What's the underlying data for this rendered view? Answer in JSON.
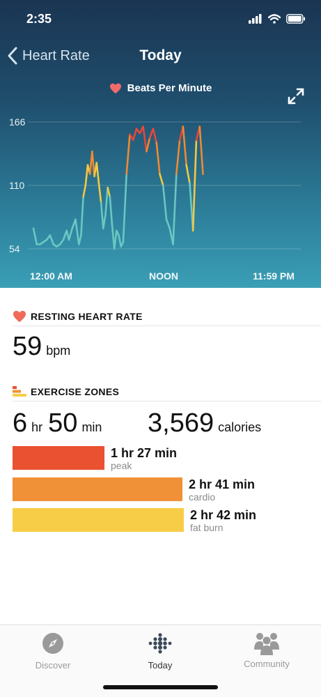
{
  "status": {
    "time": "2:35"
  },
  "nav": {
    "back_label": "Heart Rate",
    "title": "Today"
  },
  "chart_header": {
    "legend": "Beats Per Minute"
  },
  "chart_data": {
    "type": "line",
    "ylabel": "Beats Per Minute",
    "yticks": [
      54,
      110,
      166
    ],
    "ylim": [
      54,
      166
    ],
    "xticks": [
      "12:00 AM",
      "NOON",
      "11:59 PM"
    ],
    "xlim_hours": [
      0,
      24
    ],
    "colors": {
      "low": "#6ac7c2",
      "mid": "#f5c842",
      "high": "#ee8a32",
      "peak": "#e8473a"
    },
    "series": [
      {
        "x": [
          0.0,
          0.3,
          0.6,
          0.9,
          1.2,
          1.5,
          1.8,
          2.1,
          2.4,
          2.7,
          3.0,
          3.2,
          3.5,
          3.8,
          4.1,
          4.3,
          4.5,
          4.7,
          4.9,
          5.1,
          5.3,
          5.5,
          5.7,
          5.9,
          6.1,
          6.3,
          6.5,
          6.7,
          6.9,
          7.1,
          7.3,
          7.5,
          7.7,
          7.9,
          8.1,
          8.4,
          8.7,
          9.0,
          9.3,
          9.6,
          9.9,
          10.2,
          10.5,
          10.8,
          11.1,
          11.4,
          11.7,
          12.0,
          12.3,
          12.6,
          12.9,
          13.2,
          13.5,
          13.8,
          14.1,
          14.4,
          14.7,
          15.0,
          15.3
        ],
        "y": [
          72,
          58,
          58,
          60,
          62,
          66,
          58,
          56,
          58,
          62,
          70,
          62,
          72,
          80,
          58,
          66,
          100,
          110,
          128,
          120,
          140,
          118,
          130,
          112,
          95,
          72,
          84,
          108,
          100,
          75,
          54,
          70,
          66,
          56,
          60,
          120,
          155,
          150,
          160,
          156,
          162,
          140,
          152,
          160,
          148,
          120,
          110,
          80,
          72,
          58,
          120,
          150,
          162,
          128,
          112,
          70,
          150,
          162,
          120
        ]
      }
    ]
  },
  "resting": {
    "title": "RESTING HEART RATE",
    "value": "59",
    "unit": "bpm"
  },
  "zones": {
    "title": "EXERCISE ZONES",
    "hours": "6",
    "hr_unit": "hr",
    "minutes": "50",
    "min_unit": "min",
    "calories": "3,569",
    "cal_unit": "calories",
    "items": [
      {
        "duration": "1 hr 27 min",
        "name": "peak",
        "minutes": 87,
        "color": "#ea5130"
      },
      {
        "duration": "2 hr 41 min",
        "name": "cardio",
        "minutes": 161,
        "color": "#f09037"
      },
      {
        "duration": "2 hr 42 min",
        "name": "fat burn",
        "minutes": 162,
        "color": "#f7cd48"
      }
    ]
  },
  "tabs": [
    {
      "label": "Discover",
      "icon": "compass-icon"
    },
    {
      "label": "Today",
      "icon": "fitbit-dots-icon"
    },
    {
      "label": "Community",
      "icon": "community-icon"
    }
  ]
}
